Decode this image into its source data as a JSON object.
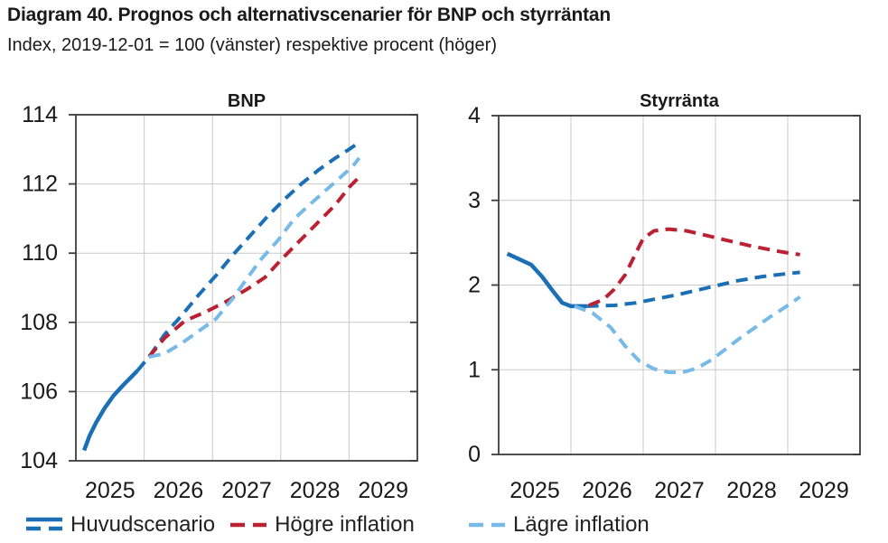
{
  "header": {
    "title": "Diagram 40. Prognos och alternativscenarier för BNP och styrräntan",
    "subtitle": "Index, 2019-12-01 = 100 (vänster) respektive procent (höger)"
  },
  "colors": {
    "main": "#1b6fb5",
    "higher": "#ba2132",
    "lower": "#77b9e7",
    "grid": "#c9c9c9",
    "frame": "#3d3d3d",
    "text": "#1a1a1a"
  },
  "legend": {
    "items": [
      {
        "label": "Huvudscenario",
        "color_key": "main",
        "icon": "solid-and-dashed"
      },
      {
        "label": "Högre inflation",
        "color_key": "higher",
        "icon": "dashed"
      },
      {
        "label": "Lägre inflation",
        "color_key": "lower",
        "icon": "dashed"
      }
    ]
  },
  "chart_data": [
    {
      "type": "line",
      "title": "BNP",
      "xlim": [
        2025,
        2030
      ],
      "ylim": [
        104,
        114
      ],
      "yticks": [
        104,
        106,
        108,
        110,
        112,
        114
      ],
      "xgridlines": [
        2026,
        2027,
        2028,
        2029
      ],
      "xticks": [
        {
          "x": 2025.5,
          "label": "2025"
        },
        {
          "x": 2026.5,
          "label": "2026"
        },
        {
          "x": 2027.5,
          "label": "2027"
        },
        {
          "x": 2028.5,
          "label": "2028"
        },
        {
          "x": 2029.5,
          "label": "2029"
        }
      ],
      "grid": true,
      "series": [
        {
          "name": "Huvudscenario",
          "style": "solid",
          "color_key": "main",
          "points": [
            [
              2025.12,
              104.3
            ],
            [
              2025.2,
              104.72
            ],
            [
              2025.3,
              105.12
            ],
            [
              2025.42,
              105.52
            ],
            [
              2025.55,
              105.88
            ],
            [
              2025.7,
              106.2
            ],
            [
              2025.8,
              106.4
            ],
            [
              2025.9,
              106.6
            ]
          ]
        },
        {
          "name": "Huvudscenario",
          "style": "dashed",
          "color_key": "main",
          "points": [
            [
              2025.9,
              106.6
            ],
            [
              2026.07,
              107.0
            ],
            [
              2026.3,
              107.65
            ],
            [
              2026.55,
              108.2
            ],
            [
              2026.8,
              108.8
            ],
            [
              2027.05,
              109.35
            ],
            [
              2027.3,
              109.95
            ],
            [
              2027.55,
              110.5
            ],
            [
              2027.8,
              111.05
            ],
            [
              2028.05,
              111.55
            ],
            [
              2028.3,
              112.0
            ],
            [
              2028.55,
              112.4
            ],
            [
              2028.8,
              112.75
            ],
            [
              2029.0,
              113.0
            ],
            [
              2029.15,
              113.2
            ]
          ]
        },
        {
          "name": "Högre inflation",
          "style": "dashed",
          "color_key": "higher",
          "points": [
            [
              2026.07,
              107.0
            ],
            [
              2026.3,
              107.55
            ],
            [
              2026.6,
              108.05
            ],
            [
              2026.9,
              108.3
            ],
            [
              2027.2,
              108.6
            ],
            [
              2027.5,
              108.95
            ],
            [
              2027.77,
              109.3
            ],
            [
              2028.0,
              109.8
            ],
            [
              2028.2,
              110.2
            ],
            [
              2028.5,
              110.8
            ],
            [
              2028.8,
              111.4
            ],
            [
              2029.0,
              111.9
            ],
            [
              2029.15,
              112.2
            ]
          ]
        },
        {
          "name": "Lägre inflation",
          "style": "dashed",
          "color_key": "lower",
          "points": [
            [
              2026.07,
              107.0
            ],
            [
              2026.3,
              107.1
            ],
            [
              2026.55,
              107.4
            ],
            [
              2026.8,
              107.75
            ],
            [
              2027.05,
              108.1
            ],
            [
              2027.3,
              108.7
            ],
            [
              2027.5,
              109.25
            ],
            [
              2027.7,
              109.8
            ],
            [
              2027.95,
              110.35
            ],
            [
              2028.2,
              111.0
            ],
            [
              2028.45,
              111.45
            ],
            [
              2028.65,
              111.8
            ],
            [
              2028.85,
              112.15
            ],
            [
              2029.05,
              112.5
            ],
            [
              2029.15,
              112.75
            ]
          ]
        }
      ]
    },
    {
      "type": "line",
      "title": "Styrränta",
      "xlim": [
        2025,
        2030
      ],
      "ylim": [
        0,
        4
      ],
      "yticks": [
        0,
        1,
        2,
        3,
        4
      ],
      "xgridlines": [
        2026,
        2027,
        2028,
        2029
      ],
      "xticks": [
        {
          "x": 2025.5,
          "label": "2025"
        },
        {
          "x": 2026.5,
          "label": "2026"
        },
        {
          "x": 2027.5,
          "label": "2027"
        },
        {
          "x": 2028.5,
          "label": "2028"
        },
        {
          "x": 2029.5,
          "label": "2029"
        }
      ],
      "grid": true,
      "series": [
        {
          "name": "Huvudscenario",
          "style": "solid",
          "color_key": "main",
          "points": [
            [
              2025.12,
              2.37
            ],
            [
              2025.3,
              2.3
            ],
            [
              2025.45,
              2.24
            ],
            [
              2025.6,
              2.1
            ],
            [
              2025.75,
              1.93
            ],
            [
              2025.88,
              1.79
            ],
            [
              2026.0,
              1.75
            ],
            [
              2026.22,
              1.75
            ]
          ]
        },
        {
          "name": "Huvudscenario",
          "style": "dashed",
          "color_key": "main",
          "points": [
            [
              2026.22,
              1.75
            ],
            [
              2026.6,
              1.76
            ],
            [
              2026.9,
              1.79
            ],
            [
              2027.2,
              1.84
            ],
            [
              2027.5,
              1.89
            ],
            [
              2027.9,
              1.97
            ],
            [
              2028.3,
              2.05
            ],
            [
              2028.65,
              2.1
            ],
            [
              2028.95,
              2.13
            ],
            [
              2029.17,
              2.15
            ]
          ]
        },
        {
          "name": "Högre inflation",
          "style": "dashed",
          "color_key": "higher",
          "points": [
            [
              2026.25,
              1.76
            ],
            [
              2026.45,
              1.83
            ],
            [
              2026.6,
              1.95
            ],
            [
              2026.75,
              2.12
            ],
            [
              2026.9,
              2.38
            ],
            [
              2027.0,
              2.55
            ],
            [
              2027.15,
              2.64
            ],
            [
              2027.35,
              2.66
            ],
            [
              2027.6,
              2.64
            ],
            [
              2027.9,
              2.58
            ],
            [
              2028.2,
              2.52
            ],
            [
              2028.5,
              2.46
            ],
            [
              2028.8,
              2.41
            ],
            [
              2029.0,
              2.38
            ],
            [
              2029.17,
              2.36
            ]
          ]
        },
        {
          "name": "Lägre inflation",
          "style": "dashed",
          "color_key": "lower",
          "points": [
            [
              2026.05,
              1.75
            ],
            [
              2026.3,
              1.67
            ],
            [
              2026.55,
              1.5
            ],
            [
              2026.75,
              1.28
            ],
            [
              2026.95,
              1.1
            ],
            [
              2027.15,
              1.01
            ],
            [
              2027.35,
              0.97
            ],
            [
              2027.55,
              0.97
            ],
            [
              2027.75,
              1.02
            ],
            [
              2027.95,
              1.12
            ],
            [
              2028.15,
              1.25
            ],
            [
              2028.35,
              1.38
            ],
            [
              2028.55,
              1.5
            ],
            [
              2028.75,
              1.62
            ],
            [
              2028.95,
              1.73
            ],
            [
              2029.17,
              1.86
            ]
          ]
        }
      ]
    }
  ]
}
